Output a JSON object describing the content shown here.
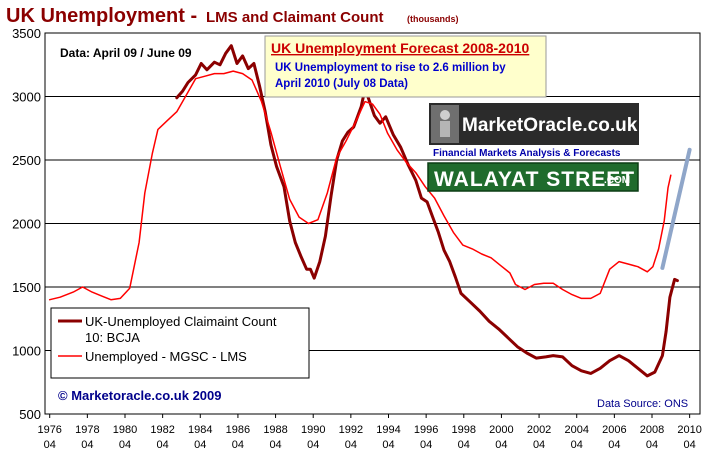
{
  "chart_data": {
    "type": "line",
    "title": "UK Unemployment -",
    "title_suffix": "LMS and Claimant Count",
    "title_unit": "(thousands)",
    "data_note": "Data: April 09 / June 09",
    "ylim": [
      500,
      3500
    ],
    "xlim": [
      1976.25,
      2010.3
    ],
    "grid": true,
    "legend_position": "bottom-left",
    "y_ticks": [
      500,
      1000,
      1500,
      2000,
      2500,
      3000,
      3500
    ],
    "x_ticks": [
      {
        "year": "1976",
        "month": "04",
        "value": 1976.25
      },
      {
        "year": "1978",
        "month": "04",
        "value": 1978.25
      },
      {
        "year": "1980",
        "month": "04",
        "value": 1980.25
      },
      {
        "year": "1982",
        "month": "04",
        "value": 1982.25
      },
      {
        "year": "1984",
        "month": "04",
        "value": 1984.25
      },
      {
        "year": "1986",
        "month": "04",
        "value": 1986.25
      },
      {
        "year": "1988",
        "month": "04",
        "value": 1988.25
      },
      {
        "year": "1990",
        "month": "04",
        "value": 1990.25
      },
      {
        "year": "1992",
        "month": "04",
        "value": 1992.25
      },
      {
        "year": "1994",
        "month": "04",
        "value": 1994.25
      },
      {
        "year": "1996",
        "month": "04",
        "value": 1996.25
      },
      {
        "year": "1998",
        "month": "04",
        "value": 1998.25
      },
      {
        "year": "2000",
        "month": "04",
        "value": 2000.25
      },
      {
        "year": "2002",
        "month": "04",
        "value": 2002.25
      },
      {
        "year": "2004",
        "month": "04",
        "value": 2004.25
      },
      {
        "year": "2006",
        "month": "04",
        "value": 2006.25
      },
      {
        "year": "2008",
        "month": "04",
        "value": 2008.25
      },
      {
        "year": "2010",
        "month": "04",
        "value": 2010.25
      }
    ],
    "series": [
      {
        "name": "UK-Unemployed Claimaint Count 10: BCJA",
        "color": "#8b0000",
        "points": [
          [
            1983.0,
            2990
          ],
          [
            1983.3,
            3040
          ],
          [
            1983.6,
            3110
          ],
          [
            1984.0,
            3170
          ],
          [
            1984.3,
            3260
          ],
          [
            1984.6,
            3210
          ],
          [
            1985.0,
            3270
          ],
          [
            1985.3,
            3250
          ],
          [
            1985.6,
            3340
          ],
          [
            1985.9,
            3400
          ],
          [
            1986.2,
            3260
          ],
          [
            1986.5,
            3320
          ],
          [
            1986.8,
            3220
          ],
          [
            1987.1,
            3260
          ],
          [
            1987.4,
            3080
          ],
          [
            1987.7,
            2880
          ],
          [
            1988.0,
            2620
          ],
          [
            1988.3,
            2450
          ],
          [
            1988.7,
            2290
          ],
          [
            1989.0,
            2020
          ],
          [
            1989.3,
            1850
          ],
          [
            1989.6,
            1740
          ],
          [
            1989.9,
            1640
          ],
          [
            1990.1,
            1640
          ],
          [
            1990.3,
            1570
          ],
          [
            1990.6,
            1700
          ],
          [
            1990.9,
            1900
          ],
          [
            1991.2,
            2220
          ],
          [
            1991.5,
            2500
          ],
          [
            1991.8,
            2650
          ],
          [
            1992.1,
            2720
          ],
          [
            1992.4,
            2760
          ],
          [
            1992.8,
            2920
          ],
          [
            1993.0,
            3060
          ],
          [
            1993.2,
            2980
          ],
          [
            1993.5,
            2850
          ],
          [
            1993.8,
            2790
          ],
          [
            1994.1,
            2840
          ],
          [
            1994.5,
            2700
          ],
          [
            1994.9,
            2600
          ],
          [
            1995.3,
            2460
          ],
          [
            1995.7,
            2340
          ],
          [
            1996.0,
            2200
          ],
          [
            1996.3,
            2170
          ],
          [
            1996.6,
            2050
          ],
          [
            1996.9,
            1930
          ],
          [
            1997.2,
            1790
          ],
          [
            1997.5,
            1700
          ],
          [
            1997.8,
            1580
          ],
          [
            1998.1,
            1450
          ],
          [
            1998.6,
            1380
          ],
          [
            1999.1,
            1310
          ],
          [
            1999.6,
            1230
          ],
          [
            2000.1,
            1170
          ],
          [
            2000.6,
            1100
          ],
          [
            2001.1,
            1030
          ],
          [
            2001.6,
            980
          ],
          [
            2002.1,
            940
          ],
          [
            2002.6,
            950
          ],
          [
            2003.0,
            960
          ],
          [
            2003.5,
            950
          ],
          [
            2004.0,
            880
          ],
          [
            2004.5,
            840
          ],
          [
            2005.0,
            820
          ],
          [
            2005.5,
            860
          ],
          [
            2006.0,
            920
          ],
          [
            2006.5,
            960
          ],
          [
            2007.0,
            920
          ],
          [
            2007.5,
            860
          ],
          [
            2008.0,
            800
          ],
          [
            2008.4,
            830
          ],
          [
            2008.8,
            960
          ],
          [
            2009.0,
            1150
          ],
          [
            2009.2,
            1420
          ],
          [
            2009.45,
            1560
          ],
          [
            2009.6,
            1550
          ]
        ]
      },
      {
        "name": "Unemployed - MGSC - LMS",
        "color": "#ff0000",
        "points": [
          [
            1976.25,
            1400
          ],
          [
            1976.8,
            1420
          ],
          [
            1977.5,
            1460
          ],
          [
            1978.0,
            1500
          ],
          [
            1978.5,
            1460
          ],
          [
            1979.0,
            1430
          ],
          [
            1979.5,
            1400
          ],
          [
            1980.0,
            1410
          ],
          [
            1980.5,
            1490
          ],
          [
            1981.0,
            1850
          ],
          [
            1981.3,
            2240
          ],
          [
            1981.7,
            2550
          ],
          [
            1982.0,
            2740
          ],
          [
            1982.5,
            2810
          ],
          [
            1983.0,
            2880
          ],
          [
            1983.5,
            3010
          ],
          [
            1984.0,
            3140
          ],
          [
            1984.5,
            3160
          ],
          [
            1985.0,
            3180
          ],
          [
            1985.5,
            3180
          ],
          [
            1986.0,
            3200
          ],
          [
            1986.5,
            3180
          ],
          [
            1987.0,
            3130
          ],
          [
            1987.5,
            2960
          ],
          [
            1988.0,
            2720
          ],
          [
            1988.5,
            2450
          ],
          [
            1989.0,
            2190
          ],
          [
            1989.5,
            2050
          ],
          [
            1990.0,
            2000
          ],
          [
            1990.5,
            2030
          ],
          [
            1991.0,
            2240
          ],
          [
            1991.5,
            2520
          ],
          [
            1992.0,
            2650
          ],
          [
            1992.5,
            2800
          ],
          [
            1993.0,
            2960
          ],
          [
            1993.4,
            2940
          ],
          [
            1993.8,
            2860
          ],
          [
            1994.2,
            2710
          ],
          [
            1994.7,
            2580
          ],
          [
            1995.2,
            2480
          ],
          [
            1995.7,
            2400
          ],
          [
            1996.2,
            2290
          ],
          [
            1996.7,
            2200
          ],
          [
            1997.2,
            2060
          ],
          [
            1997.7,
            1930
          ],
          [
            1998.2,
            1830
          ],
          [
            1998.7,
            1800
          ],
          [
            1999.2,
            1760
          ],
          [
            1999.7,
            1730
          ],
          [
            2000.2,
            1670
          ],
          [
            2000.7,
            1610
          ],
          [
            2001.0,
            1520
          ],
          [
            2001.5,
            1480
          ],
          [
            2002.0,
            1520
          ],
          [
            2002.5,
            1530
          ],
          [
            2003.0,
            1530
          ],
          [
            2003.5,
            1480
          ],
          [
            2004.0,
            1440
          ],
          [
            2004.5,
            1410
          ],
          [
            2005.0,
            1410
          ],
          [
            2005.5,
            1450
          ],
          [
            2006.0,
            1640
          ],
          [
            2006.5,
            1700
          ],
          [
            2007.0,
            1680
          ],
          [
            2007.5,
            1660
          ],
          [
            2008.0,
            1620
          ],
          [
            2008.3,
            1660
          ],
          [
            2008.6,
            1800
          ],
          [
            2008.9,
            2020
          ],
          [
            2009.1,
            2280
          ],
          [
            2009.25,
            2380
          ]
        ]
      },
      {
        "name": "forecast",
        "color": "#8fa6c9",
        "points": [
          [
            2008.8,
            1650
          ],
          [
            2010.25,
            2580
          ]
        ]
      }
    ],
    "forecast_box": {
      "title": "UK Unemployment Forecast 2008-2010",
      "line1": "UK Unemployment  to rise to 2.6 million  by",
      "line2": "April  2010  (July 08 Data)"
    },
    "logo_marketoracle": {
      "name": "MarketOracle.co.uk",
      "tagline": "Financial Markets Analysis & Forecasts"
    },
    "logo_walayat": {
      "name": "WALAYAT STREET",
      "suffix": ".COM"
    },
    "copyright": "© Marketoracle.co.uk 2009",
    "source": "Data Source: ONS"
  }
}
